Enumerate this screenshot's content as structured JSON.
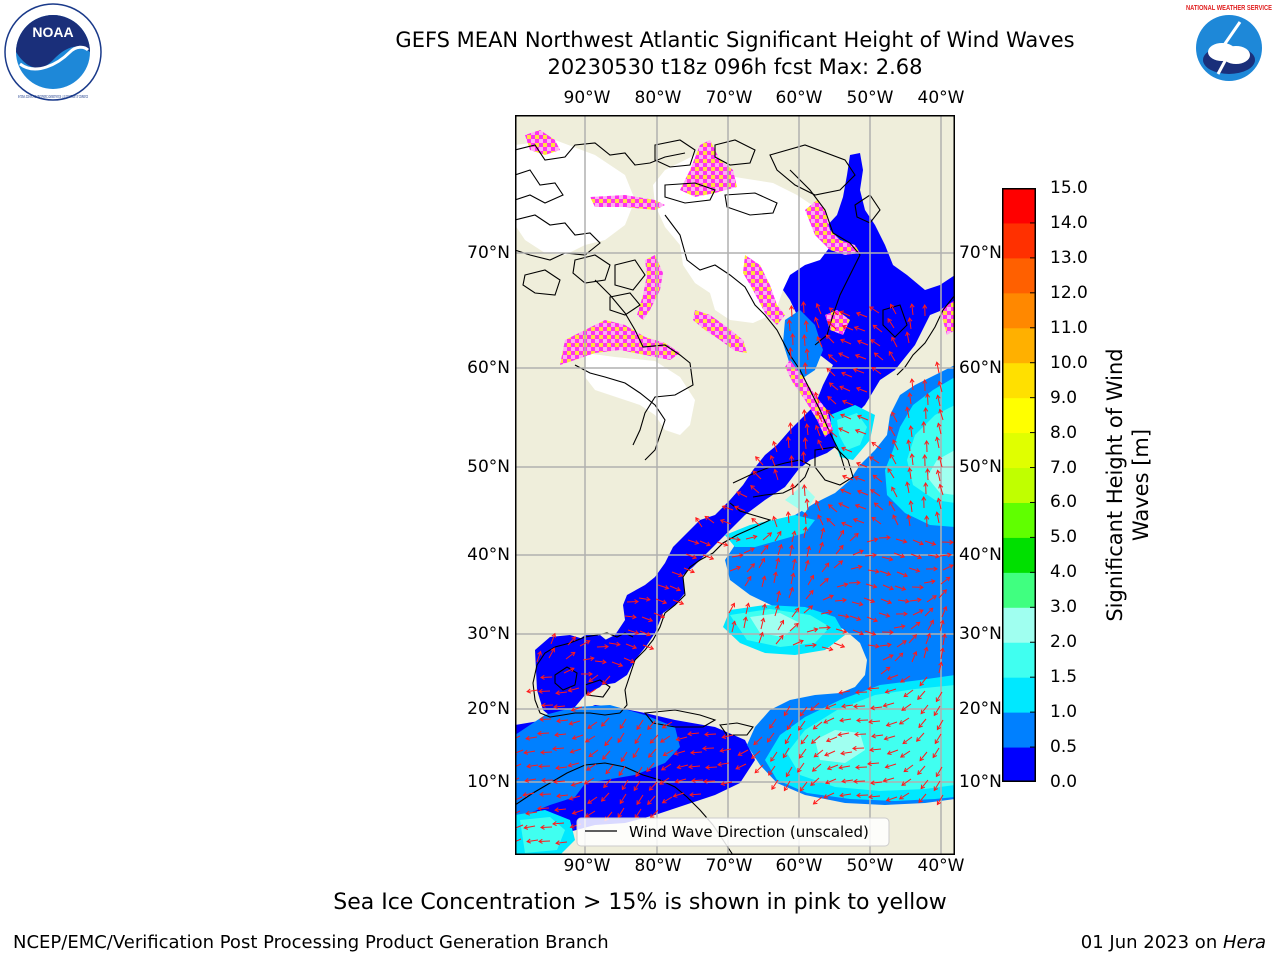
{
  "title": {
    "line1": "GEFS MEAN Northwest Atlantic Significant Height of Wind Waves",
    "line2": "20230530 t18z 096h fcst   Max: 2.68"
  },
  "logos": {
    "noaa": {
      "text": "NOAA",
      "ring_text": "NATIONAL OCEANIC AND ATMOSPHERIC ADMINISTRATION · U.S. DEPARTMENT OF COMMERCE"
    },
    "nws": {
      "ring_text": "NATIONAL WEATHER SERVICE"
    }
  },
  "map": {
    "lon_labels": [
      "90°W",
      "80°W",
      "70°W",
      "60°W",
      "50°W",
      "40°W"
    ],
    "lat_labels": [
      "70°N",
      "60°N",
      "50°N",
      "40°N",
      "30°N",
      "20°N",
      "10°N"
    ],
    "legend_label": "Wind Wave Direction (unscaled)",
    "colors": {
      "land": "#efeedb",
      "ice_pink": "#ff33ee",
      "ice_yellow": "#ffe040",
      "arrow": "#ff1a1a",
      "grid": "#b0b0b0"
    }
  },
  "colorbar": {
    "label": "Significant Height of Wind Waves [m]",
    "label_line1": "Significant Height of Wind",
    "label_line2": "Waves [m]",
    "ticks": [
      "0.0",
      "0.5",
      "1.0",
      "1.5",
      "2.0",
      "3.0",
      "4.0",
      "5.0",
      "6.0",
      "7.0",
      "8.0",
      "9.0",
      "10.0",
      "11.0",
      "12.0",
      "13.0",
      "14.0",
      "15.0"
    ],
    "colors": [
      "#0000ff",
      "#0080ff",
      "#00e8ff",
      "#40fff0",
      "#a0fff0",
      "#40ff80",
      "#00e000",
      "#60ff00",
      "#c0ff00",
      "#e0ff00",
      "#ffff00",
      "#ffe000",
      "#ffb000",
      "#ff8800",
      "#ff6000",
      "#ff3000",
      "#ff0000"
    ]
  },
  "caption": "Sea Ice Concentration > 15% is shown in pink to yellow",
  "footer": {
    "left": "NCEP/EMC/Verification Post Processing Product Generation Branch",
    "date": "01 Jun 2023 on ",
    "host": "Hera"
  }
}
